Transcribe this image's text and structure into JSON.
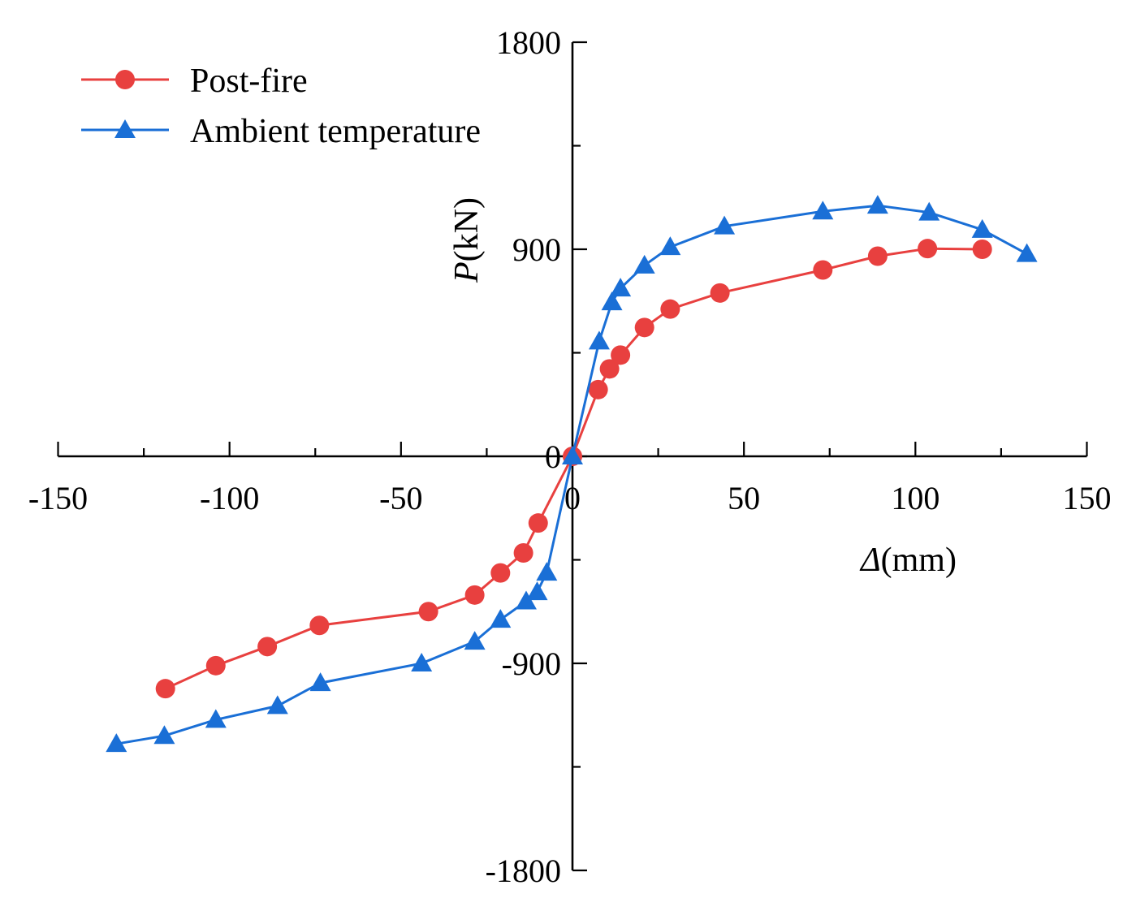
{
  "chart_data": {
    "type": "line",
    "title": "",
    "xlabel_symbol": "Δ",
    "xlabel_unit": "(mm)",
    "ylabel_symbol": "P",
    "ylabel_unit": "(kN)",
    "xlim": [
      -150,
      150
    ],
    "ylim": [
      -1800,
      1800
    ],
    "x_ticks": [
      -150,
      -100,
      -50,
      0,
      50,
      100,
      150
    ],
    "y_tick_labels": [
      1800,
      900,
      0,
      -900,
      -1800
    ],
    "y_minor_ticks": [
      1350,
      450,
      -450,
      -1350
    ],
    "x_minor_ticks": [
      -125,
      -75,
      -25,
      25,
      75,
      125
    ],
    "legend_position": "top-left",
    "series": [
      {
        "name": "Post-fire",
        "color": "#e8403f",
        "marker": "circle",
        "points": [
          [
            -118.7,
            -1010
          ],
          [
            -104,
            -910
          ],
          [
            -89,
            -827
          ],
          [
            -73.8,
            -735
          ],
          [
            -42,
            -675
          ],
          [
            -28.5,
            -603
          ],
          [
            -21,
            -507
          ],
          [
            -14.3,
            -420
          ],
          [
            -10,
            -290
          ],
          [
            0,
            0
          ],
          [
            7.5,
            290
          ],
          [
            10.8,
            380
          ],
          [
            14,
            440
          ],
          [
            21,
            560
          ],
          [
            28.5,
            640
          ],
          [
            43,
            710
          ],
          [
            73,
            810
          ],
          [
            89,
            870
          ],
          [
            103.5,
            903
          ],
          [
            119.5,
            900
          ]
        ]
      },
      {
        "name": "Ambient temperature",
        "color": "#1a6fd6",
        "marker": "triangle",
        "points": [
          [
            -133,
            -1250
          ],
          [
            -119,
            -1215
          ],
          [
            -104,
            -1145
          ],
          [
            -86,
            -1085
          ],
          [
            -73.5,
            -985
          ],
          [
            -44,
            -900
          ],
          [
            -28.5,
            -805
          ],
          [
            -21,
            -710
          ],
          [
            -13.5,
            -630
          ],
          [
            -10.3,
            -590
          ],
          [
            -7.5,
            -505
          ],
          [
            0,
            0
          ],
          [
            7.8,
            500
          ],
          [
            11.5,
            670
          ],
          [
            14,
            730
          ],
          [
            21,
            830
          ],
          [
            28.5,
            910
          ],
          [
            44.3,
            1000
          ],
          [
            73,
            1065
          ],
          [
            89,
            1090
          ],
          [
            104,
            1060
          ],
          [
            119.5,
            985
          ],
          [
            132.5,
            880
          ]
        ]
      }
    ]
  }
}
